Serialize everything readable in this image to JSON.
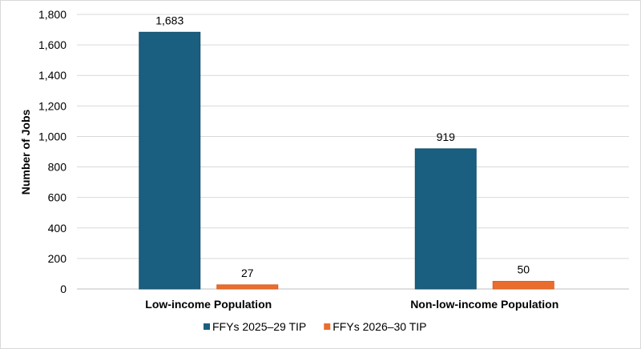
{
  "chart_data": {
    "type": "bar",
    "title": "",
    "xlabel": "",
    "ylabel": "Number of Jobs",
    "ylim": [
      0,
      1800
    ],
    "yticks": [
      0,
      200,
      400,
      600,
      800,
      1000,
      1200,
      1400,
      1600,
      1800
    ],
    "ytick_labels": [
      "0",
      "200",
      "400",
      "600",
      "800",
      "1,000",
      "1,200",
      "1,400",
      "1,600",
      "1,800"
    ],
    "grid": true,
    "legend": "bottom",
    "categories": [
      "Low-income Population",
      "Non-low-income Population"
    ],
    "series": [
      {
        "name": "FFYs 2025–29 TIP",
        "values": [
          1683,
          919
        ],
        "labels": [
          "1,683",
          "919"
        ],
        "color": "#1a5e80"
      },
      {
        "name": "FFYs 2026–30 TIP",
        "values": [
          27,
          50
        ],
        "labels": [
          "27",
          "50"
        ],
        "color": "#ea6d2d"
      }
    ]
  }
}
